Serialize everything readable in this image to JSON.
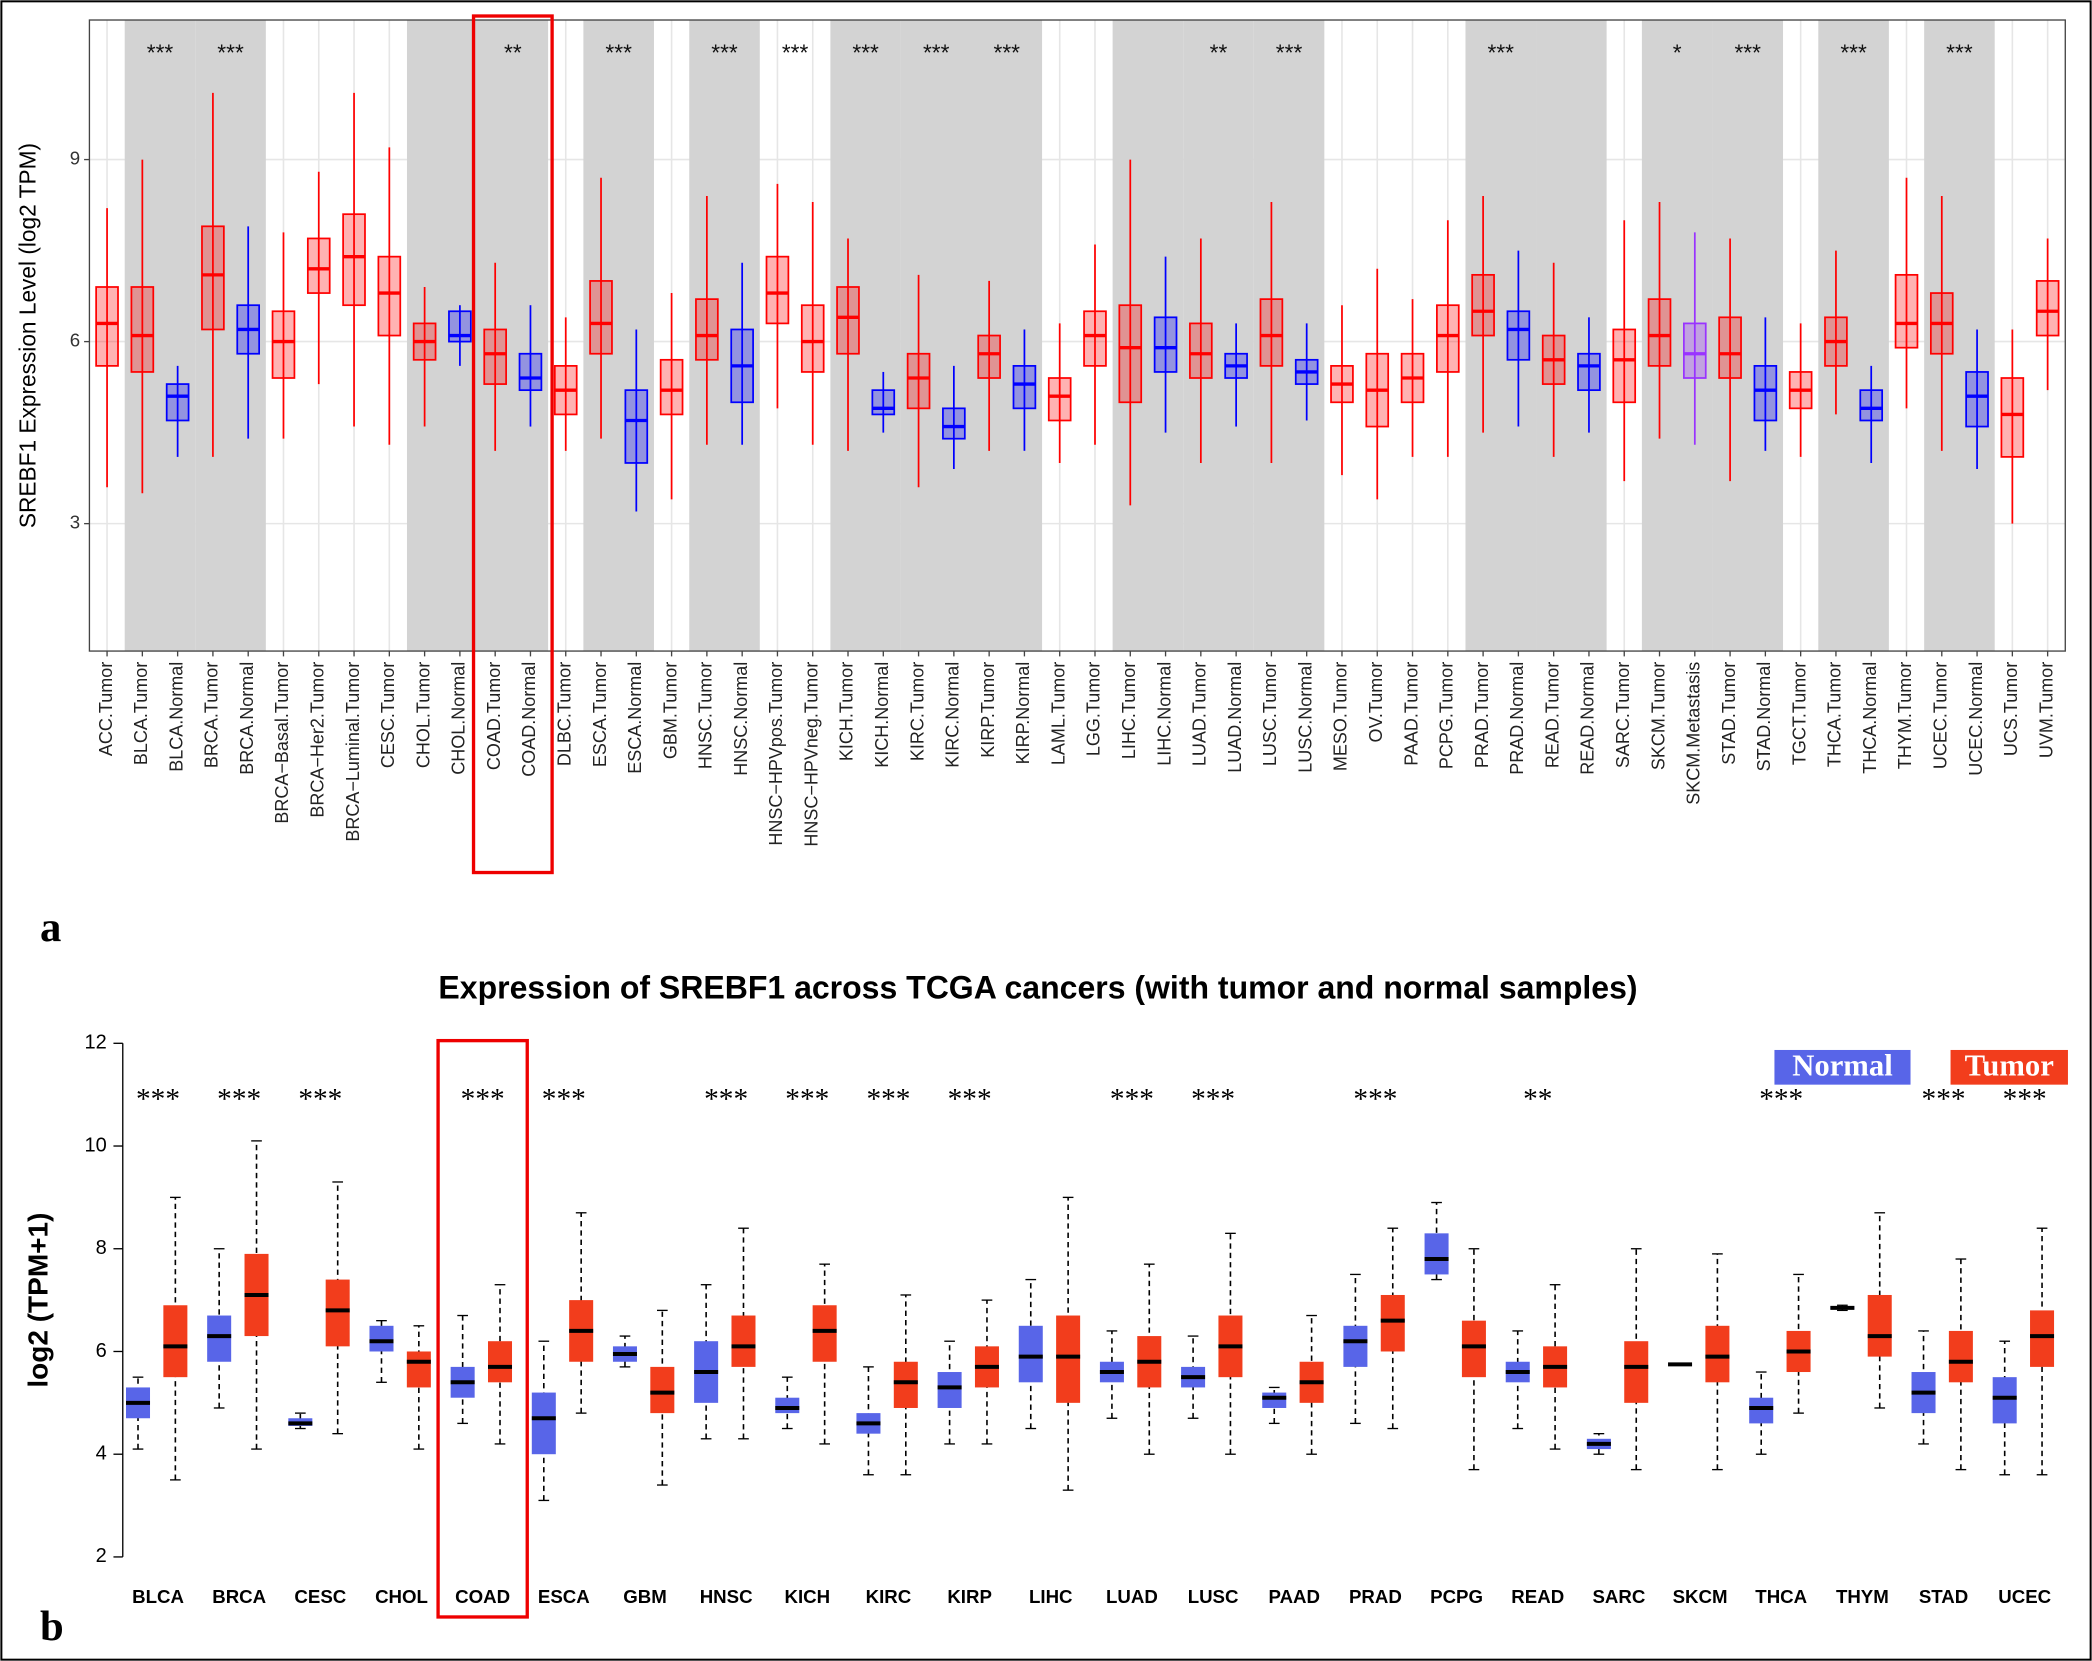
{
  "chart_data": [
    {
      "type": "box",
      "panel_label": "a",
      "y_label": "SREBF1 Expression Level (log2 TPM)",
      "categories": [
        "ACC.Tumor",
        "BLCA.Tumor",
        "BLCA.Normal",
        "BRCA.Tumor",
        "BRCA.Normal",
        "BRCA−Basal.Tumor",
        "BRCA−Her2.Tumor",
        "BRCA−Luminal.Tumor",
        "CESC.Tumor",
        "CHOL.Tumor",
        "CHOL.Normal",
        "COAD.Tumor",
        "COAD.Normal",
        "DLBC.Tumor",
        "ESCA.Tumor",
        "ESCA.Normal",
        "GBM.Tumor",
        "HNSC.Tumor",
        "HNSC.Normal",
        "HNSC−HPVpos.Tumor",
        "HNSC−HPVneg.Tumor",
        "KICH.Tumor",
        "KICH.Normal",
        "KIRC.Tumor",
        "KIRC.Normal",
        "KIRP.Tumor",
        "KIRP.Normal",
        "LAML.Tumor",
        "LGG.Tumor",
        "LIHC.Tumor",
        "LIHC.Normal",
        "LUAD.Tumor",
        "LUAD.Normal",
        "LUSC.Tumor",
        "LUSC.Normal",
        "MESO.Tumor",
        "OV.Tumor",
        "PAAD.Tumor",
        "PCPG.Tumor",
        "PRAD.Tumor",
        "PRAD.Normal",
        "READ.Tumor",
        "READ.Normal",
        "SARC.Tumor",
        "SKCM.Tumor",
        "SKCM.Metastasis",
        "STAD.Tumor",
        "STAD.Normal",
        "TGCT.Tumor",
        "THCA.Tumor",
        "THCA.Normal",
        "THYM.Tumor",
        "UCEC.Tumor",
        "UCEC.Normal",
        "UCS.Tumor",
        "UVM.Tumor"
      ],
      "boxes": [
        [
          3.6,
          5.6,
          6.3,
          6.9,
          8.2
        ],
        [
          3.5,
          5.5,
          6.1,
          6.9,
          9.0
        ],
        [
          4.1,
          4.7,
          5.1,
          5.3,
          5.6
        ],
        [
          4.1,
          6.2,
          7.1,
          7.9,
          10.1
        ],
        [
          4.4,
          5.8,
          6.2,
          6.6,
          7.9
        ],
        [
          4.4,
          5.4,
          6.0,
          6.5,
          7.8
        ],
        [
          5.3,
          6.8,
          7.2,
          7.7,
          8.8
        ],
        [
          4.6,
          6.6,
          7.4,
          8.1,
          10.1
        ],
        [
          4.3,
          6.1,
          6.8,
          7.4,
          9.2
        ],
        [
          4.6,
          5.7,
          6.0,
          6.3,
          6.9
        ],
        [
          5.6,
          6.0,
          6.1,
          6.5,
          6.6
        ],
        [
          4.2,
          5.3,
          5.8,
          6.2,
          7.3
        ],
        [
          4.6,
          5.2,
          5.4,
          5.8,
          6.6
        ],
        [
          4.2,
          4.8,
          5.2,
          5.6,
          6.4
        ],
        [
          4.4,
          5.8,
          6.3,
          7.0,
          8.7
        ],
        [
          3.2,
          4.0,
          4.7,
          5.2,
          6.2
        ],
        [
          3.4,
          4.8,
          5.2,
          5.7,
          6.8
        ],
        [
          4.3,
          5.7,
          6.1,
          6.7,
          8.4
        ],
        [
          4.3,
          5.0,
          5.6,
          6.2,
          7.3
        ],
        [
          4.9,
          6.3,
          6.8,
          7.4,
          8.6
        ],
        [
          4.3,
          5.5,
          6.0,
          6.6,
          8.3
        ],
        [
          4.2,
          5.8,
          6.4,
          6.9,
          7.7
        ],
        [
          4.5,
          4.8,
          4.9,
          5.2,
          5.5
        ],
        [
          3.6,
          4.9,
          5.4,
          5.8,
          7.1
        ],
        [
          3.9,
          4.4,
          4.6,
          4.9,
          5.6
        ],
        [
          4.2,
          5.4,
          5.8,
          6.1,
          7.0
        ],
        [
          4.2,
          4.9,
          5.3,
          5.6,
          6.2
        ],
        [
          4.0,
          4.7,
          5.1,
          5.4,
          6.3
        ],
        [
          4.3,
          5.6,
          6.1,
          6.5,
          7.6
        ],
        [
          3.3,
          5.0,
          5.9,
          6.6,
          9.0
        ],
        [
          4.5,
          5.5,
          5.9,
          6.4,
          7.4
        ],
        [
          4.0,
          5.4,
          5.8,
          6.3,
          7.7
        ],
        [
          4.6,
          5.4,
          5.6,
          5.8,
          6.3
        ],
        [
          4.0,
          5.6,
          6.1,
          6.7,
          8.3
        ],
        [
          4.7,
          5.3,
          5.5,
          5.7,
          6.3
        ],
        [
          3.8,
          5.0,
          5.3,
          5.6,
          6.6
        ],
        [
          3.4,
          4.6,
          5.2,
          5.8,
          7.2
        ],
        [
          4.1,
          5.0,
          5.4,
          5.8,
          6.7
        ],
        [
          4.1,
          5.5,
          6.1,
          6.6,
          8.0
        ],
        [
          4.5,
          6.1,
          6.5,
          7.1,
          8.4
        ],
        [
          4.6,
          5.7,
          6.2,
          6.5,
          7.5
        ],
        [
          4.1,
          5.3,
          5.7,
          6.1,
          7.3
        ],
        [
          4.5,
          5.2,
          5.6,
          5.8,
          6.4
        ],
        [
          3.7,
          5.0,
          5.7,
          6.2,
          8.0
        ],
        [
          4.4,
          5.6,
          6.1,
          6.7,
          8.3
        ],
        [
          4.3,
          5.4,
          5.8,
          6.3,
          7.8
        ],
        [
          3.7,
          5.4,
          5.8,
          6.4,
          7.7
        ],
        [
          4.2,
          4.7,
          5.2,
          5.6,
          6.4
        ],
        [
          4.1,
          4.9,
          5.2,
          5.5,
          6.3
        ],
        [
          4.8,
          5.6,
          6.0,
          6.4,
          7.5
        ],
        [
          4.0,
          4.7,
          4.9,
          5.2,
          5.6
        ],
        [
          4.9,
          5.9,
          6.3,
          7.1,
          8.7
        ],
        [
          4.2,
          5.8,
          6.3,
          6.8,
          8.4
        ],
        [
          3.9,
          4.6,
          5.1,
          5.5,
          6.2
        ],
        [
          3.0,
          4.1,
          4.8,
          5.4,
          6.2
        ],
        [
          5.2,
          6.1,
          6.5,
          7.0,
          7.7
        ]
      ],
      "box_colors": [
        "#f00",
        "#f00",
        "#00f",
        "#f00",
        "#00f",
        "#f00",
        "#f00",
        "#f00",
        "#f00",
        "#f00",
        "#00f",
        "#f00",
        "#00f",
        "#f00",
        "#f00",
        "#00f",
        "#f00",
        "#f00",
        "#00f",
        "#f00",
        "#f00",
        "#f00",
        "#00f",
        "#f00",
        "#00f",
        "#f00",
        "#00f",
        "#f00",
        "#f00",
        "#f00",
        "#00f",
        "#f00",
        "#00f",
        "#f00",
        "#00f",
        "#f00",
        "#f00",
        "#f00",
        "#f00",
        "#f00",
        "#00f",
        "#f00",
        "#00f",
        "#f00",
        "#f00",
        "#93f",
        "#f00",
        "#00f",
        "#f00",
        "#f00",
        "#00f",
        "#f00",
        "#f00",
        "#00f",
        "#f00",
        "#f00"
      ],
      "significance": [
        null,
        "***",
        null,
        "***",
        null,
        null,
        null,
        null,
        null,
        null,
        null,
        "**",
        null,
        null,
        "***",
        null,
        null,
        "***",
        null,
        "***",
        null,
        "***",
        null,
        "***",
        null,
        "***",
        null,
        null,
        null,
        null,
        null,
        "**",
        null,
        "***",
        null,
        null,
        null,
        null,
        null,
        "***",
        null,
        null,
        null,
        null,
        "*",
        null,
        "***",
        null,
        null,
        "***",
        null,
        null,
        "***",
        null,
        null,
        null
      ],
      "ylim": [
        0.9,
        11.3
      ],
      "yticks": [
        3,
        6,
        9
      ],
      "grid": true,
      "highlight": "COAD"
    },
    {
      "type": "grouped_box",
      "panel_label": "b",
      "title": "Expression of SREBF1 across TCGA cancers (with tumor and normal samples)",
      "y_label": "log2 (TPM+1)",
      "categories": [
        "BLCA",
        "BRCA",
        "CESC",
        "CHOL",
        "COAD",
        "ESCA",
        "GBM",
        "HNSC",
        "KICH",
        "KIRC",
        "KIRP",
        "LIHC",
        "LUAD",
        "LUSC",
        "PAAD",
        "PRAD",
        "PCPG",
        "READ",
        "SARC",
        "SKCM",
        "THCA",
        "THYM",
        "STAD",
        "UCEC"
      ],
      "series": [
        {
          "name": "Normal",
          "color": "#5865e8",
          "boxes": [
            [
              4.1,
              4.7,
              5.0,
              5.3,
              5.5
            ],
            [
              4.9,
              5.8,
              6.3,
              6.7,
              8.0
            ],
            [
              4.5,
              4.55,
              4.6,
              4.7,
              4.8
            ],
            [
              5.4,
              6.0,
              6.2,
              6.5,
              6.6
            ],
            [
              4.6,
              5.1,
              5.4,
              5.7,
              6.7
            ],
            [
              3.1,
              4.0,
              4.7,
              5.2,
              6.2
            ],
            [
              5.7,
              5.8,
              5.95,
              6.1,
              6.3
            ],
            [
              4.3,
              5.0,
              5.6,
              6.2,
              7.3
            ],
            [
              4.5,
              4.8,
              4.9,
              5.1,
              5.5
            ],
            [
              3.6,
              4.4,
              4.6,
              4.8,
              5.7
            ],
            [
              4.2,
              4.9,
              5.3,
              5.6,
              6.2
            ],
            [
              4.5,
              5.4,
              5.9,
              6.5,
              7.4
            ],
            [
              4.7,
              5.4,
              5.6,
              5.8,
              6.4
            ],
            [
              4.7,
              5.3,
              5.5,
              5.7,
              6.3
            ],
            [
              4.6,
              4.9,
              5.1,
              5.2,
              5.3
            ],
            [
              4.6,
              5.7,
              6.2,
              6.5,
              7.5
            ],
            [
              7.4,
              7.5,
              7.8,
              8.3,
              8.9
            ],
            [
              4.5,
              5.4,
              5.6,
              5.8,
              6.4
            ],
            [
              4.0,
              4.1,
              4.2,
              4.3,
              4.4
            ],
            [
              5.75,
              5.75,
              5.75,
              5.75,
              5.75
            ],
            [
              4.0,
              4.6,
              4.9,
              5.1,
              5.6
            ],
            [
              6.8,
              6.82,
              6.85,
              6.88,
              6.9
            ],
            [
              4.2,
              4.8,
              5.2,
              5.6,
              6.4
            ],
            [
              3.6,
              4.6,
              5.1,
              5.5,
              6.2
            ]
          ]
        },
        {
          "name": "Tumor",
          "color": "#f23d1c",
          "boxes": [
            [
              3.5,
              5.5,
              6.1,
              6.9,
              9.0
            ],
            [
              4.1,
              6.3,
              7.1,
              7.9,
              10.1
            ],
            [
              4.4,
              6.1,
              6.8,
              7.4,
              9.3
            ],
            [
              4.1,
              5.3,
              5.8,
              6.0,
              6.5
            ],
            [
              4.2,
              5.4,
              5.7,
              6.2,
              7.3
            ],
            [
              4.8,
              5.8,
              6.4,
              7.0,
              8.7
            ],
            [
              3.4,
              4.8,
              5.2,
              5.7,
              6.8
            ],
            [
              4.3,
              5.7,
              6.1,
              6.7,
              8.4
            ],
            [
              4.2,
              5.8,
              6.4,
              6.9,
              7.7
            ],
            [
              3.6,
              4.9,
              5.4,
              5.8,
              7.1
            ],
            [
              4.2,
              5.3,
              5.7,
              6.1,
              7.0
            ],
            [
              3.3,
              5.0,
              5.9,
              6.7,
              9.0
            ],
            [
              4.0,
              5.3,
              5.8,
              6.3,
              7.7
            ],
            [
              4.0,
              5.5,
              6.1,
              6.7,
              8.3
            ],
            [
              4.0,
              5.0,
              5.4,
              5.8,
              6.7
            ],
            [
              4.5,
              6.0,
              6.6,
              7.1,
              8.4
            ],
            [
              3.7,
              5.5,
              6.1,
              6.6,
              8.0
            ],
            [
              4.1,
              5.3,
              5.7,
              6.1,
              7.3
            ],
            [
              3.7,
              5.0,
              5.7,
              6.2,
              8.0
            ],
            [
              3.7,
              5.4,
              5.9,
              6.5,
              7.9
            ],
            [
              4.8,
              5.6,
              6.0,
              6.4,
              7.5
            ],
            [
              4.9,
              5.9,
              6.3,
              7.1,
              8.7
            ],
            [
              3.7,
              5.4,
              5.8,
              6.4,
              7.8
            ],
            [
              3.6,
              5.7,
              6.3,
              6.8,
              8.4
            ]
          ]
        }
      ],
      "significance": [
        "***",
        "***",
        "***",
        null,
        "***",
        "***",
        null,
        "***",
        "***",
        "***",
        "***",
        null,
        "***",
        "***",
        null,
        "***",
        null,
        "**",
        null,
        null,
        "***",
        null,
        "***",
        "***"
      ],
      "ylim": [
        2,
        12
      ],
      "yticks": [
        2,
        4,
        6,
        8,
        10,
        12
      ],
      "legend": "top-right",
      "highlight": "COAD"
    }
  ]
}
